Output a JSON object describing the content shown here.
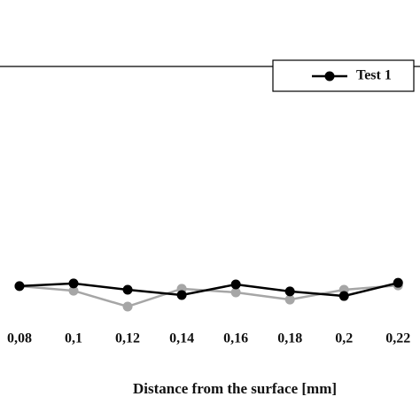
{
  "chart_data": {
    "type": "line",
    "x_label": "Distance from the surface [mm]",
    "x": [
      0.08,
      0.1,
      0.12,
      0.14,
      0.16,
      0.18,
      0.2,
      0.22
    ],
    "series": [
      {
        "name": "Test 1",
        "color": "#000000",
        "values": [
          13.2,
          14.0,
          12.1,
          10.5,
          13.7,
          11.6,
          10.2,
          14.2
        ]
      },
      {
        "color": "#a6a6a6",
        "values": [
          13.2,
          11.8,
          7.0,
          12.4,
          11.3,
          9.1,
          12.1,
          13.4
        ]
      }
    ],
    "xlim": [
      0.0728,
      0.2281
    ],
    "xticks": [
      {
        "value": 0.08,
        "label": "0,08"
      },
      {
        "value": 0.1,
        "label": "0,1"
      },
      {
        "value": 0.12,
        "label": "0,12"
      },
      {
        "value": 0.14,
        "label": "0,14"
      },
      {
        "value": 0.16,
        "label": "0,16"
      },
      {
        "value": 0.18,
        "label": "0,18"
      },
      {
        "value": 0.2,
        "label": "0,2"
      },
      {
        "value": 0.22,
        "label": "0,22"
      }
    ],
    "ylim": [
      0,
      100
    ]
  }
}
